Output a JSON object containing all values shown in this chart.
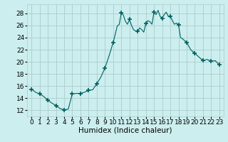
{
  "x": [
    0,
    0.5,
    1,
    1.5,
    2,
    2.5,
    3,
    3.5,
    4,
    4.5,
    5,
    5.5,
    6,
    6.5,
    7,
    7.5,
    8,
    8.5,
    9,
    9.5,
    10,
    10.25,
    10.5,
    10.75,
    11,
    11.25,
    11.5,
    11.75,
    12,
    12.25,
    12.5,
    12.75,
    13,
    13.25,
    13.5,
    13.75,
    14,
    14.25,
    14.5,
    14.75,
    15,
    15.25,
    15.5,
    15.75,
    16,
    16.25,
    16.5,
    16.75,
    17,
    17.25,
    17.5,
    17.75,
    18,
    18.25,
    18.5,
    18.75,
    19,
    19.5,
    20,
    20.5,
    21,
    21.5,
    22,
    22.5,
    23
  ],
  "y": [
    15.5,
    15.0,
    14.7,
    14.3,
    13.7,
    13.2,
    12.8,
    12.3,
    12.1,
    12.2,
    14.7,
    14.8,
    14.8,
    15.0,
    15.3,
    15.4,
    16.4,
    17.5,
    19.0,
    21.0,
    23.2,
    24.5,
    25.9,
    26.2,
    28.1,
    27.7,
    26.7,
    26.2,
    27.0,
    26.0,
    25.3,
    25.1,
    25.0,
    25.6,
    25.3,
    24.9,
    26.3,
    26.8,
    26.6,
    26.2,
    28.2,
    27.8,
    28.5,
    27.5,
    27.2,
    27.8,
    28.2,
    27.5,
    27.5,
    26.8,
    26.2,
    26.4,
    26.1,
    24.0,
    23.8,
    23.5,
    23.2,
    22.0,
    21.4,
    20.8,
    20.2,
    20.4,
    20.1,
    20.2,
    19.5
  ],
  "marker_x": [
    0,
    1,
    2,
    3,
    4,
    5,
    6,
    7,
    8,
    9,
    10,
    11,
    12,
    13,
    14,
    15,
    16,
    17,
    18,
    19,
    20,
    21,
    22,
    23
  ],
  "marker_y": [
    15.5,
    14.7,
    13.7,
    12.8,
    12.1,
    14.7,
    14.8,
    15.3,
    16.4,
    19.0,
    23.2,
    28.1,
    27.0,
    25.0,
    26.3,
    28.2,
    27.2,
    27.5,
    26.1,
    23.2,
    21.4,
    20.2,
    20.1,
    19.5
  ],
  "line_color": "#006060",
  "marker": "+",
  "marker_size": 4,
  "bg_color": "#cceeee",
  "grid_color": "#aacccc",
  "xlabel": "Humidex (Indice chaleur)",
  "xlabel_fontsize": 7.5,
  "yticks": [
    12,
    14,
    16,
    18,
    20,
    22,
    24,
    26,
    28
  ],
  "xticks": [
    0,
    1,
    2,
    3,
    4,
    5,
    6,
    7,
    8,
    9,
    10,
    11,
    12,
    13,
    14,
    15,
    16,
    17,
    18,
    19,
    20,
    21,
    22,
    23
  ],
  "xlim": [
    -0.5,
    23.5
  ],
  "ylim": [
    11.0,
    29.5
  ],
  "tick_fontsize": 6.5
}
